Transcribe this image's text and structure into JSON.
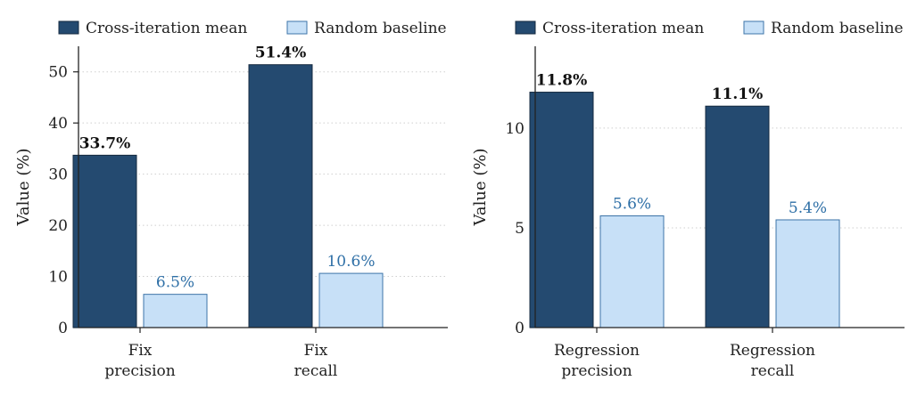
{
  "colors": {
    "main": "#244a70",
    "main_edge": "#15293f",
    "baseline": "#c7e0f7",
    "baseline_edge": "#3d74a8",
    "baseline_text": "#2e6fa6",
    "grid": "#cfcfcf",
    "axis": "#222222"
  },
  "chart_data": [
    {
      "type": "bar",
      "categories": [
        [
          "Fix",
          "precision"
        ],
        [
          "Fix",
          "recall"
        ]
      ],
      "series": [
        {
          "name": "Cross-iteration mean",
          "values": [
            33.7,
            51.4
          ],
          "labels": [
            "33.7%",
            "51.4%"
          ]
        },
        {
          "name": "Random baseline",
          "values": [
            6.5,
            10.6
          ],
          "labels": [
            "6.5%",
            "10.6%"
          ]
        }
      ],
      "ylabel": "Value (%)",
      "ylim": [
        0,
        55
      ],
      "yticks": [
        0,
        10,
        20,
        30,
        40,
        50
      ],
      "grid": "horizontal, dotted",
      "legend": "top"
    },
    {
      "type": "bar",
      "categories": [
        [
          "Regression",
          "precision"
        ],
        [
          "Regression",
          "recall"
        ]
      ],
      "series": [
        {
          "name": "Cross-iteration mean",
          "values": [
            11.8,
            11.1
          ],
          "labels": [
            "11.8%",
            "11.1%"
          ]
        },
        {
          "name": "Random baseline",
          "values": [
            5.6,
            5.4
          ],
          "labels": [
            "5.6%",
            "5.4%"
          ]
        }
      ],
      "ylabel": "Value (%)",
      "ylim": [
        0,
        14.1
      ],
      "yticks": [
        0,
        5,
        10
      ],
      "grid": "horizontal, dotted",
      "legend": "top"
    }
  ]
}
